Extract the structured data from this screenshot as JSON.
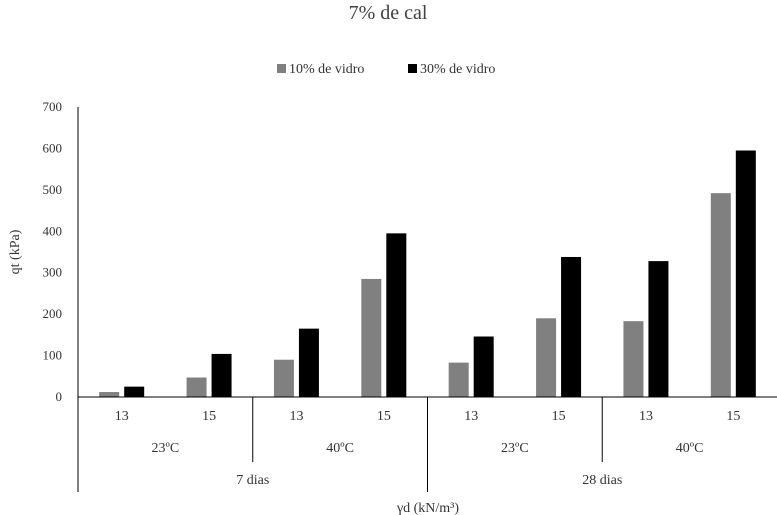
{
  "chart_data": {
    "type": "bar",
    "title": "7% de cal",
    "xlabel": "γd (kN/m³)",
    "ylabel": "qt (kPa)",
    "ylim": [
      0,
      700
    ],
    "yticks": [
      0,
      100,
      200,
      300,
      400,
      500,
      600,
      700
    ],
    "grid": false,
    "legend_position": "top",
    "categories": [
      {
        "density": "13",
        "temperature": "23ºC",
        "curing": "7 dias"
      },
      {
        "density": "15",
        "temperature": "23ºC",
        "curing": "7 dias"
      },
      {
        "density": "13",
        "temperature": "40ºC",
        "curing": "7 dias"
      },
      {
        "density": "15",
        "temperature": "40ºC",
        "curing": "7 dias"
      },
      {
        "density": "13",
        "temperature": "23ºC",
        "curing": "28 dias"
      },
      {
        "density": "15",
        "temperature": "23ºC",
        "curing": "28 dias"
      },
      {
        "density": "13",
        "temperature": "40ºC",
        "curing": "28 dias"
      },
      {
        "density": "15",
        "temperature": "40ºC",
        "curing": "28 dias"
      }
    ],
    "temperature_groups": [
      "23ºC",
      "40ºC",
      "23ºC",
      "40ºC"
    ],
    "curing_groups": [
      "7 dias",
      "28 dias"
    ],
    "series": [
      {
        "name": "10% de vidro",
        "color": "#808080",
        "values": [
          12,
          47,
          90,
          285,
          83,
          190,
          183,
          492
        ]
      },
      {
        "name": "30% de vidro",
        "color": "#000000",
        "values": [
          25,
          104,
          165,
          395,
          146,
          338,
          328,
          595
        ]
      }
    ]
  }
}
